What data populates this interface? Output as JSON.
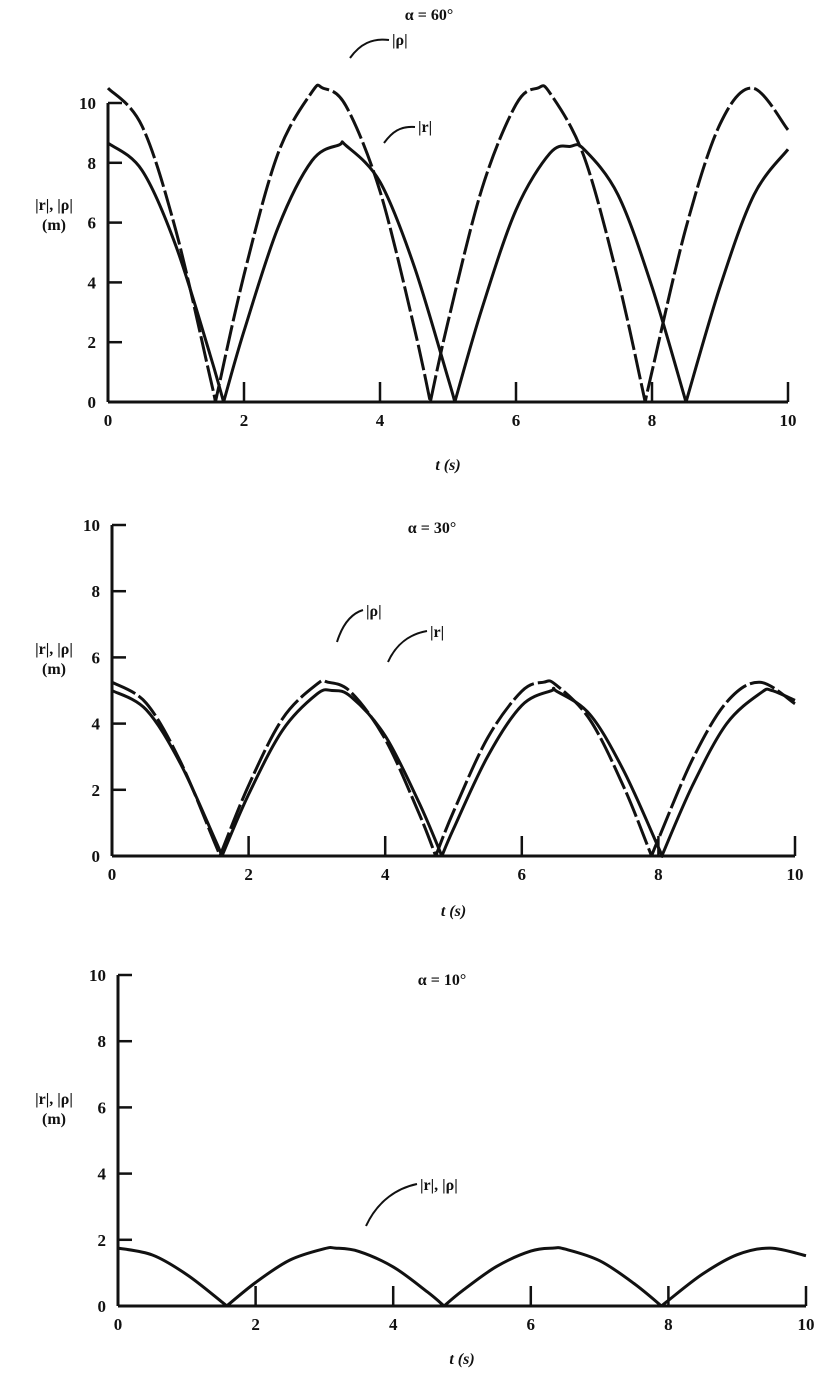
{
  "chart_data": [
    {
      "type": "line",
      "title": "α = 60°",
      "xlabel": "t (s)",
      "ylabel": "|r|, |ρ|",
      "ylabel_unit": "(m)",
      "xlim": [
        0,
        10
      ],
      "ylim": [
        0,
        10
      ],
      "xticks": [
        "0",
        "2",
        "4",
        "6",
        "8",
        "10"
      ],
      "yticks": [
        "0",
        "2",
        "4",
        "6",
        "8",
        "10"
      ],
      "grid": false,
      "series": [
        {
          "name": "|ρ|",
          "style": "dashed",
          "x": [
            0,
            0.5,
            1,
            1.5,
            1.58,
            2,
            2.5,
            3,
            3.16,
            3.5,
            4,
            4.5,
            4.74,
            5,
            5.5,
            6,
            6.32,
            6.5,
            7,
            7.5,
            7.9,
            8,
            8.5,
            9,
            9.48,
            10
          ],
          "y": [
            10.5,
            9.23,
            5.72,
            0.84,
            0,
            4.25,
            8.31,
            10.37,
            10.5,
            9.9,
            7.05,
            2.52,
            0,
            2.68,
            7.14,
            9.95,
            10.5,
            10.33,
            8.21,
            4.1,
            0,
            1.02,
            5.83,
            9.29,
            10.5,
            9.1
          ]
        },
        {
          "name": "|r|",
          "style": "solid",
          "x": [
            0,
            0.5,
            1,
            1.5,
            1.7,
            2,
            2.5,
            3,
            3.4,
            3.5,
            4,
            4.5,
            5,
            5.1,
            5.5,
            6,
            6.5,
            6.8,
            7,
            7.5,
            8,
            8.5,
            9,
            9.5,
            10
          ],
          "y": [
            8.66,
            7.75,
            5.21,
            1.59,
            0,
            2.37,
            5.83,
            8.07,
            8.6,
            8.58,
            7.36,
            4.56,
            0.8,
            0,
            3.13,
            6.42,
            8.32,
            8.55,
            8.45,
            6.93,
            3.85,
            0,
            3.85,
            6.93,
            8.45
          ]
        }
      ],
      "annotations": [
        "|ρ|",
        "|r|"
      ]
    },
    {
      "type": "line",
      "title": "α = 30°",
      "xlabel": "t (s)",
      "ylabel": "|r|, |ρ|",
      "ylabel_unit": "(m)",
      "xlim": [
        0,
        10
      ],
      "ylim": [
        0,
        10
      ],
      "xticks": [
        "0",
        "2",
        "4",
        "6",
        "8",
        "10"
      ],
      "yticks": [
        "0",
        "2",
        "4",
        "6",
        "8",
        "10"
      ],
      "grid": false,
      "series": [
        {
          "name": "|ρ|",
          "style": "dashed",
          "x": [
            0,
            0.5,
            1,
            1.5,
            1.58,
            2,
            2.5,
            3,
            3.16,
            3.5,
            4,
            4.5,
            4.74,
            5,
            5.5,
            6,
            6.32,
            6.5,
            7,
            7.5,
            7.9,
            8,
            8.5,
            9,
            9.48,
            10
          ],
          "y": [
            5.25,
            4.62,
            2.86,
            0.42,
            0,
            2.13,
            4.16,
            5.19,
            5.25,
            4.95,
            3.53,
            1.26,
            0,
            1.34,
            3.57,
            4.98,
            5.25,
            5.17,
            4.11,
            2.05,
            0,
            0.51,
            2.92,
            4.65,
            5.25,
            4.6
          ]
        },
        {
          "name": "|r|",
          "style": "solid",
          "x": [
            0,
            0.5,
            1,
            1.5,
            1.61,
            2,
            2.5,
            3,
            3.22,
            3.5,
            4,
            4.5,
            4.83,
            5,
            5.5,
            6,
            6.44,
            6.5,
            7,
            7.5,
            8,
            8.05,
            8.5,
            9,
            9.5,
            9.66,
            10
          ],
          "y": [
            5.0,
            4.42,
            2.8,
            0.54,
            0,
            1.86,
            3.81,
            4.89,
            5.0,
            4.81,
            3.63,
            1.59,
            0,
            0.82,
            3.01,
            4.55,
            5.0,
            4.99,
            4.27,
            2.54,
            0.26,
            0,
            2.13,
            4.0,
            4.93,
            5.0,
            4.7
          ]
        }
      ],
      "annotations": [
        "|ρ|",
        "|r|"
      ]
    },
    {
      "type": "line",
      "title": "α = 10°",
      "xlabel": "t (s)",
      "ylabel": "|r|, |ρ|",
      "ylabel_unit": "(m)",
      "xlim": [
        0,
        10
      ],
      "ylim": [
        0,
        10
      ],
      "xticks": [
        "0",
        "2",
        "4",
        "6",
        "8",
        "10"
      ],
      "yticks": [
        "0",
        "2",
        "4",
        "6",
        "8",
        "10"
      ],
      "grid": false,
      "series": [
        {
          "name": "|r|, |ρ|",
          "style": "solid",
          "x": [
            0,
            0.5,
            1,
            1.5,
            1.58,
            2,
            2.5,
            3,
            3.16,
            3.5,
            4,
            4.5,
            4.74,
            5,
            5.5,
            6,
            6.32,
            6.5,
            7,
            7.5,
            7.9,
            8,
            8.5,
            9,
            9.48,
            10
          ],
          "y": [
            1.75,
            1.54,
            0.95,
            0.14,
            0,
            0.71,
            1.39,
            1.73,
            1.75,
            1.65,
            1.18,
            0.42,
            0,
            0.45,
            1.19,
            1.66,
            1.75,
            1.72,
            1.37,
            0.68,
            0,
            0.17,
            0.97,
            1.55,
            1.75,
            1.52
          ]
        }
      ],
      "annotations": [
        "|r|, |ρ|"
      ]
    }
  ]
}
